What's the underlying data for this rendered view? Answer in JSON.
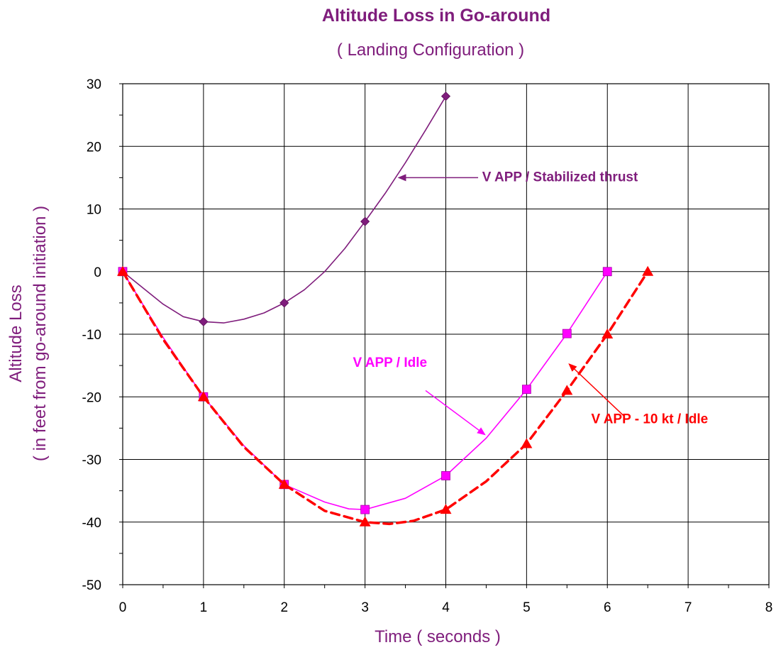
{
  "chart_data": {
    "type": "line",
    "title": "Altitude Loss in Go-around",
    "subtitle": "( Landing Configuration )",
    "xlabel": "Time ( seconds )",
    "ylabel_line1": "Altitude Loss",
    "ylabel_line2": "( in feet from go-around initiation )",
    "xlim": [
      0,
      8
    ],
    "ylim": [
      -50,
      30
    ],
    "x_ticks": [
      0,
      1,
      2,
      3,
      4,
      5,
      6,
      7,
      8
    ],
    "y_ticks": [
      30,
      20,
      10,
      0,
      -10,
      -20,
      -30,
      -40,
      -50
    ],
    "grid": true,
    "series": [
      {
        "name": "V APP /  Stabilized thrust",
        "color": "#7f1d7c",
        "marker": "diamond",
        "line_style": "solid",
        "points": [
          [
            0,
            0
          ],
          [
            1,
            -8
          ],
          [
            2,
            -5
          ],
          [
            3,
            8
          ],
          [
            4,
            28
          ]
        ],
        "curve": [
          [
            0,
            0
          ],
          [
            0.25,
            -2.6
          ],
          [
            0.5,
            -5.2
          ],
          [
            0.75,
            -7.2
          ],
          [
            1,
            -8
          ],
          [
            1.25,
            -8.2
          ],
          [
            1.5,
            -7.6
          ],
          [
            1.75,
            -6.6
          ],
          [
            2,
            -5
          ],
          [
            2.25,
            -2.9
          ],
          [
            2.5,
            0
          ],
          [
            2.75,
            3.7
          ],
          [
            3,
            8
          ],
          [
            3.25,
            12.5
          ],
          [
            3.5,
            17.4
          ],
          [
            3.75,
            22.6
          ],
          [
            4,
            28
          ]
        ]
      },
      {
        "name": "V APP  /  Idle",
        "color": "#ff00ff",
        "marker": "square",
        "line_style": "solid",
        "points": [
          [
            0,
            0
          ],
          [
            1,
            -20
          ],
          [
            2,
            -34
          ],
          [
            3,
            -38
          ],
          [
            4,
            -32.6
          ],
          [
            5,
            -18.8
          ],
          [
            5.5,
            -9.9
          ],
          [
            6,
            0
          ]
        ],
        "curve": [
          [
            0,
            0
          ],
          [
            0.5,
            -10.5
          ],
          [
            1,
            -20
          ],
          [
            1.5,
            -27.8
          ],
          [
            2,
            -34
          ],
          [
            2.5,
            -36.8
          ],
          [
            2.8,
            -37.9
          ],
          [
            3,
            -38
          ],
          [
            3.5,
            -36.2
          ],
          [
            4,
            -32.6
          ],
          [
            4.5,
            -26.6
          ],
          [
            5,
            -18.8
          ],
          [
            5.5,
            -9.9
          ],
          [
            6,
            0
          ]
        ]
      },
      {
        "name": "V APP - 10 kt  /  Idle",
        "color": "#ff0000",
        "marker": "triangle",
        "line_style": "dashed",
        "points": [
          [
            0,
            0
          ],
          [
            1,
            -20
          ],
          [
            2,
            -34
          ],
          [
            3,
            -40
          ],
          [
            4,
            -38
          ],
          [
            5,
            -27.5
          ],
          [
            5.5,
            -19
          ],
          [
            6,
            -10
          ],
          [
            6.5,
            0
          ]
        ],
        "curve": [
          [
            0,
            0
          ],
          [
            0.5,
            -10.8
          ],
          [
            1,
            -20
          ],
          [
            1.5,
            -28
          ],
          [
            2,
            -34
          ],
          [
            2.5,
            -38.2
          ],
          [
            3,
            -40
          ],
          [
            3.3,
            -40.3
          ],
          [
            3.6,
            -39.8
          ],
          [
            4,
            -38
          ],
          [
            4.5,
            -33.5
          ],
          [
            5,
            -27.5
          ],
          [
            5.5,
            -19
          ],
          [
            6,
            -10
          ],
          [
            6.5,
            0
          ]
        ]
      }
    ],
    "annotations": [
      {
        "text": "V APP /  Stabilized thrust",
        "color": "#7f1d7c",
        "text_x": 4.45,
        "text_y": 14.4,
        "arrow_from": [
          4.4,
          15
        ],
        "arrow_to": [
          3.42,
          15
        ]
      },
      {
        "text": "V APP  /  Idle",
        "color": "#ff00ff",
        "text_x": 2.85,
        "text_y": -15.2,
        "arrow_from": [
          3.75,
          -19
        ],
        "arrow_to": [
          4.48,
          -26
        ]
      },
      {
        "text": "V APP - 10 kt  /  Idle",
        "color": "#ff0000",
        "text_x": 5.8,
        "text_y": -24.2,
        "arrow_from": [
          6.2,
          -23
        ],
        "arrow_to": [
          5.53,
          -14.8
        ]
      }
    ]
  }
}
